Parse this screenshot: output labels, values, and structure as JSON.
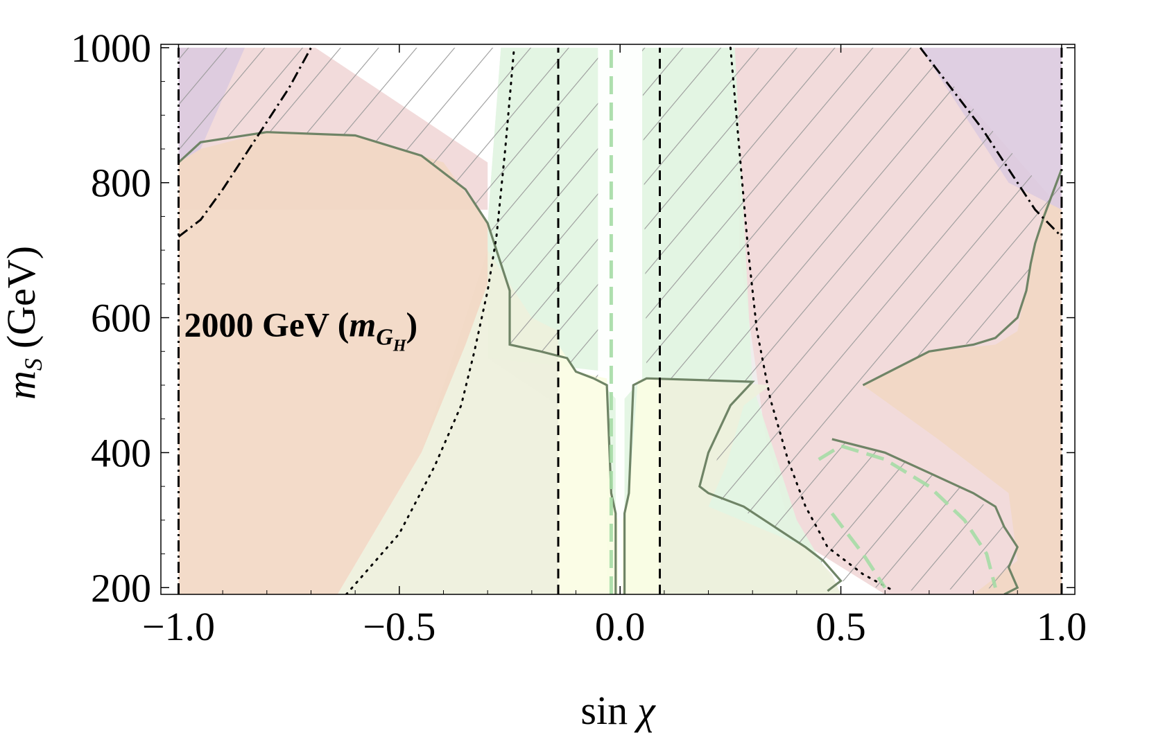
{
  "chart_data": {
    "type": "area",
    "title": "",
    "xlabel": "sin χ",
    "xlabel_main": "sin",
    "xlabel_symbol": "χ",
    "ylabel_symbol": "m",
    "ylabel_sub": "S",
    "ylabel_unit": "(GeV)",
    "xlim": [
      -1.04,
      1.03
    ],
    "ylim": [
      190,
      1005
    ],
    "x_ticks": [
      -1.0,
      -0.5,
      0.0,
      0.5,
      1.0
    ],
    "x_tick_labels": [
      "−1.0",
      "−0.5",
      "0.0",
      "0.5",
      "1.0"
    ],
    "y_ticks": [
      200,
      400,
      600,
      800,
      1000
    ],
    "y_tick_labels": [
      "200",
      "400",
      "600",
      "800",
      "1000"
    ],
    "grid": false,
    "annotation": {
      "x": -1.0,
      "y": 593,
      "prefix": "2000 GeV (",
      "symbol": "m",
      "sub_main": "G",
      "sub_sub": "H",
      "suffix": ")"
    },
    "colors": {
      "salmon": "#f2d8c4",
      "pink": "#f1d8d8",
      "purple": "#dccbe0",
      "lightgreen": "#e2f5e2",
      "yellow": "#fbfde4",
      "olive": "#eef0dc",
      "grey_region": "#efefef",
      "boundary": "#6f8466",
      "hatch": "#9a9a9a",
      "dash_green": "#a5dba5"
    },
    "regions": [
      {
        "name": "pink-hatched-left",
        "fill": "pink",
        "points": [
          [
            -1.0,
            1000
          ],
          [
            -0.69,
            1000
          ],
          [
            -0.3,
            830
          ],
          [
            -0.3,
            760
          ],
          [
            -1.0,
            760
          ]
        ]
      },
      {
        "name": "pink-hatched-right",
        "fill": "pink",
        "points": [
          [
            0.25,
            1000
          ],
          [
            0.68,
            1000
          ],
          [
            1.0,
            760
          ],
          [
            1.0,
            190
          ],
          [
            0.6,
            190
          ],
          [
            0.33,
            300
          ],
          [
            0.26,
            500
          ],
          [
            0.25,
            1000
          ]
        ]
      },
      {
        "name": "grey-band-left",
        "fill": "grey_region",
        "points": [
          [
            -0.27,
            1000
          ],
          [
            -0.14,
            1000
          ],
          [
            -0.14,
            470
          ],
          [
            -0.3,
            540
          ],
          [
            -0.3,
            740
          ],
          [
            -0.27,
            1000
          ]
        ]
      },
      {
        "name": "grey-band-right",
        "fill": "grey_region",
        "points": [
          [
            0.1,
            1000
          ],
          [
            0.26,
            1000
          ],
          [
            0.27,
            700
          ],
          [
            0.33,
            420
          ],
          [
            0.38,
            300
          ],
          [
            0.1,
            300
          ]
        ]
      },
      {
        "name": "green-center",
        "fill": "lightgreen",
        "points": [
          [
            -0.27,
            1000
          ],
          [
            0.26,
            1000
          ],
          [
            0.3,
            500
          ],
          [
            0.4,
            300
          ],
          [
            0.5,
            190
          ],
          [
            -0.03,
            190
          ],
          [
            -0.03,
            520
          ],
          [
            -0.3,
            540
          ],
          [
            -0.3,
            740
          ]
        ]
      },
      {
        "name": "white-center",
        "fill": "white",
        "points": [
          [
            -0.05,
            1000
          ],
          [
            0.05,
            1000
          ],
          [
            0.05,
            510
          ],
          [
            0.01,
            480
          ],
          [
            0.01,
            190
          ],
          [
            -0.01,
            190
          ],
          [
            -0.01,
            480
          ],
          [
            -0.05,
            510
          ]
        ]
      },
      {
        "name": "yellow-center",
        "fill": "yellow",
        "points": [
          [
            -0.14,
            190
          ],
          [
            0.09,
            190
          ],
          [
            0.09,
            510
          ],
          [
            0.04,
            508
          ],
          [
            0.02,
            330
          ],
          [
            0.005,
            300
          ],
          [
            0.005,
            190
          ],
          [
            -0.005,
            190
          ],
          [
            -0.005,
            300
          ],
          [
            -0.02,
            330
          ],
          [
            -0.03,
            510
          ],
          [
            -0.1,
            520
          ],
          [
            -0.14,
            560
          ]
        ]
      },
      {
        "name": "olive-left",
        "fill": "olive",
        "points": [
          [
            -0.64,
            190
          ],
          [
            -0.14,
            190
          ],
          [
            -0.14,
            580
          ],
          [
            -0.2,
            600
          ],
          [
            -0.3,
            700
          ],
          [
            -0.35,
            600
          ],
          [
            -0.45,
            400
          ],
          [
            -0.64,
            190
          ]
        ]
      },
      {
        "name": "olive-right",
        "fill": "olive",
        "points": [
          [
            0.09,
            190
          ],
          [
            0.5,
            190
          ],
          [
            0.48,
            220
          ],
          [
            0.42,
            260
          ],
          [
            0.2,
            320
          ],
          [
            0.24,
            380
          ],
          [
            0.28,
            470
          ],
          [
            0.34,
            500
          ],
          [
            0.09,
            510
          ]
        ]
      },
      {
        "name": "salmon-left",
        "fill": "salmon",
        "points": [
          [
            -1.0,
            190
          ],
          [
            -0.64,
            190
          ],
          [
            -0.45,
            400
          ],
          [
            -0.35,
            560
          ],
          [
            -0.3,
            650
          ],
          [
            -0.3,
            740
          ],
          [
            -0.4,
            830
          ],
          [
            -0.6,
            870
          ],
          [
            -0.8,
            875
          ],
          [
            -0.95,
            850
          ],
          [
            -1.0,
            830
          ]
        ]
      },
      {
        "name": "salmon-right",
        "fill": "salmon",
        "points": [
          [
            0.65,
            190
          ],
          [
            1.0,
            190
          ],
          [
            1.0,
            820
          ],
          [
            0.96,
            760
          ],
          [
            0.93,
            680
          ],
          [
            0.9,
            580
          ],
          [
            0.85,
            560
          ],
          [
            0.7,
            550
          ],
          [
            0.55,
            500
          ],
          [
            0.72,
            420
          ],
          [
            0.88,
            340
          ],
          [
            0.9,
            240
          ],
          [
            0.8,
            190
          ]
        ]
      },
      {
        "name": "purple-top-left",
        "fill": "purple",
        "points": [
          [
            -1.0,
            1000
          ],
          [
            -0.85,
            1000
          ],
          [
            -0.95,
            850
          ],
          [
            -1.0,
            830
          ]
        ]
      },
      {
        "name": "purple-top-right",
        "fill": "purple",
        "points": [
          [
            0.68,
            1000
          ],
          [
            1.0,
            1000
          ],
          [
            1.0,
            760
          ],
          [
            0.88,
            800
          ]
        ]
      }
    ],
    "boundaries": [
      {
        "name": "solid-boundary-left",
        "style": "solid",
        "points": [
          [
            -1.0,
            830
          ],
          [
            -0.95,
            860
          ],
          [
            -0.8,
            875
          ],
          [
            -0.6,
            870
          ],
          [
            -0.45,
            840
          ],
          [
            -0.35,
            790
          ],
          [
            -0.3,
            740
          ],
          [
            -0.27,
            680
          ],
          [
            -0.25,
            640
          ],
          [
            -0.25,
            560
          ],
          [
            -0.18,
            550
          ],
          [
            -0.12,
            540
          ],
          [
            -0.1,
            520
          ],
          [
            -0.06,
            510
          ],
          [
            -0.03,
            500
          ],
          [
            -0.02,
            340
          ],
          [
            -0.01,
            310
          ],
          [
            -0.01,
            190
          ]
        ]
      },
      {
        "name": "solid-boundary-right-top",
        "style": "solid",
        "points": [
          [
            0.01,
            190
          ],
          [
            0.01,
            310
          ],
          [
            0.02,
            340
          ],
          [
            0.03,
            500
          ],
          [
            0.06,
            510
          ],
          [
            0.3,
            505
          ],
          [
            0.25,
            470
          ],
          [
            0.2,
            400
          ],
          [
            0.18,
            350
          ],
          [
            0.2,
            340
          ],
          [
            0.28,
            320
          ],
          [
            0.35,
            290
          ],
          [
            0.42,
            260
          ],
          [
            0.46,
            240
          ],
          [
            0.5,
            210
          ],
          [
            0.47,
            195
          ]
        ]
      },
      {
        "name": "solid-boundary-right-mid",
        "style": "solid",
        "points": [
          [
            0.55,
            500
          ],
          [
            0.7,
            550
          ],
          [
            0.8,
            560
          ],
          [
            0.85,
            570
          ],
          [
            0.9,
            600
          ],
          [
            0.92,
            640
          ],
          [
            0.93,
            680
          ],
          [
            0.94,
            710
          ],
          [
            0.96,
            750
          ],
          [
            1.0,
            820
          ]
        ]
      },
      {
        "name": "solid-boundary-right-low",
        "style": "solid",
        "points": [
          [
            0.48,
            420
          ],
          [
            0.6,
            400
          ],
          [
            0.7,
            370
          ],
          [
            0.8,
            340
          ],
          [
            0.85,
            320
          ],
          [
            0.87,
            290
          ],
          [
            0.9,
            260
          ],
          [
            0.88,
            230
          ],
          [
            0.9,
            200
          ],
          [
            0.87,
            190
          ]
        ]
      },
      {
        "name": "dotted-boundary-left",
        "style": "dotted",
        "points": [
          [
            -0.62,
            190
          ],
          [
            -0.5,
            280
          ],
          [
            -0.42,
            380
          ],
          [
            -0.36,
            470
          ],
          [
            -0.33,
            550
          ],
          [
            -0.3,
            640
          ],
          [
            -0.28,
            720
          ],
          [
            -0.26,
            850
          ],
          [
            -0.24,
            1000
          ]
        ]
      },
      {
        "name": "dotted-boundary-right",
        "style": "dotted",
        "points": [
          [
            0.25,
            1000
          ],
          [
            0.27,
            850
          ],
          [
            0.29,
            700
          ],
          [
            0.31,
            580
          ],
          [
            0.34,
            480
          ],
          [
            0.38,
            390
          ],
          [
            0.42,
            320
          ],
          [
            0.47,
            260
          ],
          [
            0.55,
            220
          ],
          [
            0.62,
            195
          ]
        ]
      },
      {
        "name": "dashdot-curve-left",
        "style": "dashdot",
        "points": [
          [
            -1.0,
            720
          ],
          [
            -0.95,
            745
          ],
          [
            -0.9,
            790
          ],
          [
            -0.85,
            840
          ],
          [
            -0.8,
            890
          ],
          [
            -0.75,
            940
          ],
          [
            -0.7,
            1000
          ]
        ]
      },
      {
        "name": "dashdot-curve-right",
        "style": "dashdot",
        "points": [
          [
            0.68,
            1000
          ],
          [
            0.75,
            940
          ],
          [
            0.82,
            880
          ],
          [
            0.88,
            820
          ],
          [
            0.94,
            760
          ],
          [
            1.0,
            720
          ]
        ]
      },
      {
        "name": "dashed-vertical-left",
        "style": "dashed",
        "points": [
          [
            -0.14,
            190
          ],
          [
            -0.14,
            1000
          ]
        ]
      },
      {
        "name": "dashed-vertical-right",
        "style": "dashed",
        "points": [
          [
            0.09,
            190
          ],
          [
            0.09,
            1000
          ]
        ]
      },
      {
        "name": "dashdot-vertical-left",
        "style": "dashdot",
        "points": [
          [
            -1.0,
            190
          ],
          [
            -1.0,
            1000
          ]
        ]
      },
      {
        "name": "dashdot-vertical-right",
        "style": "dashdot",
        "points": [
          [
            1.0,
            190
          ],
          [
            1.0,
            1000
          ]
        ]
      },
      {
        "name": "green-dash-center",
        "style": "greendash",
        "points": [
          [
            -0.02,
            190
          ],
          [
            -0.02,
            1000
          ]
        ]
      },
      {
        "name": "green-dash-arc-outer",
        "style": "greendash",
        "points": [
          [
            0.45,
            390
          ],
          [
            0.5,
            410
          ],
          [
            0.6,
            390
          ],
          [
            0.7,
            350
          ],
          [
            0.78,
            300
          ],
          [
            0.83,
            250
          ],
          [
            0.85,
            200
          ]
        ]
      },
      {
        "name": "green-dash-arc-inner",
        "style": "greendash",
        "points": [
          [
            0.48,
            310
          ],
          [
            0.55,
            250
          ],
          [
            0.6,
            200
          ]
        ]
      }
    ]
  }
}
